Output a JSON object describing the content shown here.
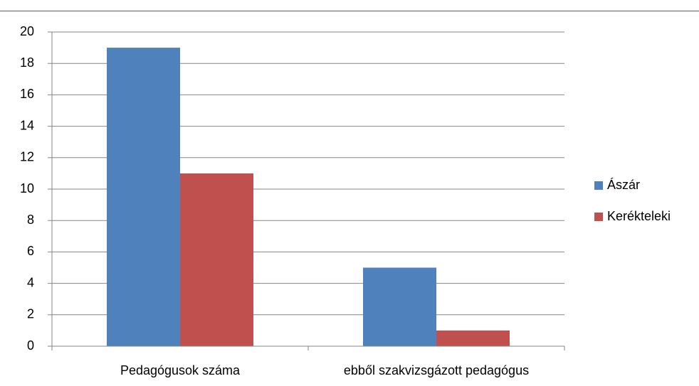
{
  "chart_data": {
    "type": "bar",
    "categories": [
      "Pedagógusok száma",
      "ebből szakvizsgázott pedagógus"
    ],
    "series": [
      {
        "name": "Ászár",
        "color": "#4f81bd",
        "values": [
          19,
          5
        ]
      },
      {
        "name": "Kerékteleki",
        "color": "#c0504d",
        "values": [
          11,
          1
        ]
      }
    ],
    "ylim": [
      0,
      20
    ],
    "yticks": [
      0,
      2,
      4,
      6,
      8,
      10,
      12,
      14,
      16,
      18,
      20
    ],
    "grid": true,
    "legend": "right"
  }
}
